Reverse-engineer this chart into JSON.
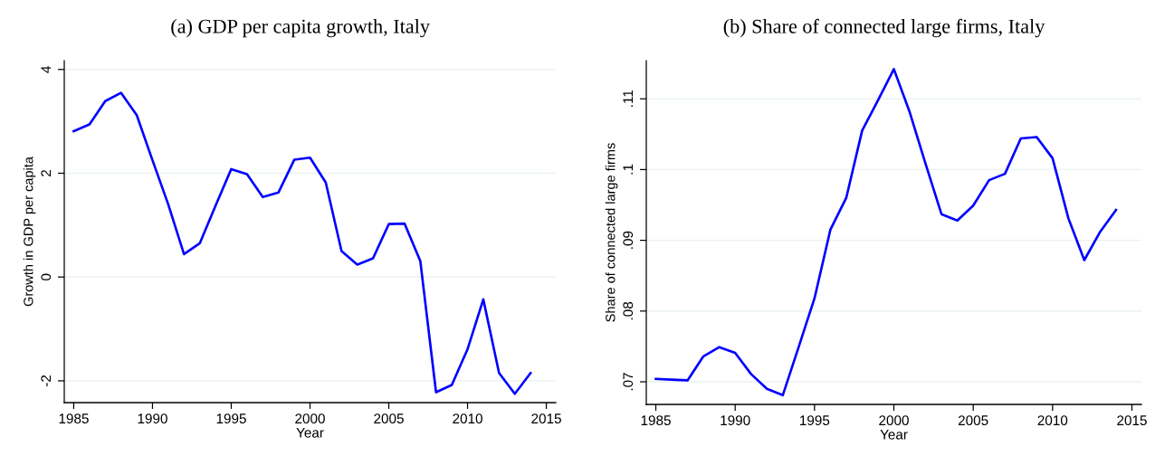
{
  "chart_data": [
    {
      "type": "line",
      "title": "(a) GDP per capita growth, Italy",
      "xlabel": "Year",
      "ylabel": "Growth in GDP per capita",
      "x": [
        1985,
        1986,
        1987,
        1988,
        1989,
        1990,
        1991,
        1992,
        1993,
        1994,
        1995,
        1996,
        1997,
        1998,
        1999,
        2000,
        2001,
        2002,
        2003,
        2004,
        2005,
        2006,
        2007,
        2008,
        2009,
        2010,
        2011,
        2012,
        2013,
        2014
      ],
      "series": [
        {
          "color": "#0000ff",
          "values": [
            2.81,
            2.94,
            3.39,
            3.55,
            3.12,
            2.25,
            1.4,
            0.44,
            0.65,
            1.37,
            2.08,
            1.98,
            1.54,
            1.63,
            2.26,
            2.3,
            1.82,
            0.5,
            0.24,
            0.36,
            1.02,
            1.03,
            0.31,
            -2.22,
            -2.08,
            -1.39,
            -0.43,
            -1.85,
            -2.25,
            -1.85
          ]
        }
      ],
      "xlim": [
        1984.4,
        2015.6
      ],
      "ylim": [
        -2.42,
        4.17
      ],
      "xticks": [
        1985,
        1990,
        1995,
        2000,
        2005,
        2010,
        2015
      ],
      "yticks": [
        -2,
        0,
        2,
        4
      ],
      "grid": "y"
    },
    {
      "type": "line",
      "title": "(b) Share of connected large firms, Italy",
      "xlabel": "Year",
      "ylabel": "Share of connected large firms",
      "x": [
        1985,
        1986,
        1987,
        1988,
        1989,
        1990,
        1991,
        1992,
        1993,
        1994,
        1995,
        1996,
        1997,
        1998,
        1999,
        2000,
        2001,
        2002,
        2003,
        2004,
        2005,
        2006,
        2007,
        2008,
        2009,
        2010,
        2011,
        2012,
        2013,
        2014
      ],
      "series": [
        {
          "color": "#0000ff",
          "values": [
            0.0704,
            0.0703,
            0.0702,
            0.0736,
            0.0749,
            0.0741,
            0.0711,
            0.069,
            0.0681,
            0.0749,
            0.0818,
            0.0915,
            0.096,
            0.1055,
            0.1098,
            0.1142,
            0.1081,
            0.1008,
            0.0937,
            0.0928,
            0.0949,
            0.0985,
            0.0994,
            0.1044,
            0.1046,
            0.1016,
            0.0931,
            0.0872,
            0.0912,
            0.0943
          ]
        }
      ],
      "xlim": [
        1984.4,
        2015.6
      ],
      "ylim": [
        0.0668,
        0.1154
      ],
      "xticks": [
        1985,
        1990,
        1995,
        2000,
        2005,
        2010,
        2015
      ],
      "yticks": [
        {
          "value": 0.07,
          "label": ".07"
        },
        {
          "value": 0.08,
          "label": ".08"
        },
        {
          "value": 0.09,
          "label": ".09"
        },
        {
          "value": 0.1,
          "label": ".1"
        },
        {
          "value": 0.11,
          "label": ".11"
        }
      ],
      "grid": "y"
    }
  ]
}
